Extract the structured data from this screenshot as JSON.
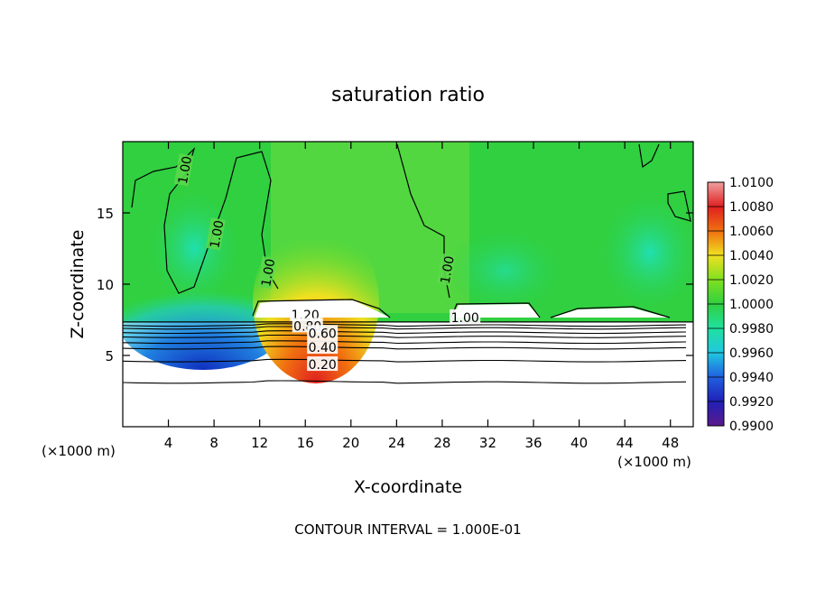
{
  "chart_data": {
    "type": "heatmap",
    "title": "saturation ratio",
    "xlabel": "X-coordinate",
    "ylabel": "Z-coordinate",
    "x_unit": "(×1000 m)",
    "x_unit_right": "(×1000 m)",
    "xlim": [
      0,
      50
    ],
    "ylim": [
      0,
      20
    ],
    "x_ticks": [
      4,
      8,
      12,
      16,
      20,
      24,
      28,
      32,
      36,
      40,
      44,
      48
    ],
    "y_ticks": [
      5,
      10,
      15
    ],
    "colorbar": {
      "labels": [
        "0.9900",
        "0.9920",
        "0.9940",
        "0.9960",
        "0.9980",
        "1.0000",
        "1.0020",
        "1.0040",
        "1.0060",
        "1.0080",
        "1.0100"
      ],
      "values": [
        0.99,
        0.992,
        0.994,
        0.996,
        0.998,
        1.0,
        1.002,
        1.004,
        1.006,
        1.008,
        1.01
      ],
      "colors": [
        "#5a1a8c",
        "#2020b8",
        "#2060e0",
        "#20c8e0",
        "#20e0a0",
        "#30d040",
        "#80e020",
        "#f0e020",
        "#f07010",
        "#e02020",
        "#f0a0a0"
      ]
    },
    "contour_labels": [
      {
        "text": "1.00",
        "x": 5.5,
        "z": 18.0
      },
      {
        "text": "1.00",
        "x": 8.3,
        "z": 13.5
      },
      {
        "text": "1.00",
        "x": 12.8,
        "z": 10.8
      },
      {
        "text": "1.00",
        "x": 28.5,
        "z": 11.0
      },
      {
        "text": "1.00",
        "x": 30.0,
        "z": 7.6
      },
      {
        "text": "1.20",
        "x": 16.0,
        "z": 7.8
      },
      {
        "text": "0.80",
        "x": 16.2,
        "z": 7.0
      },
      {
        "text": "0.60",
        "x": 17.5,
        "z": 6.5
      },
      {
        "text": "0.40",
        "x": 17.5,
        "z": 5.5
      },
      {
        "text": "0.20",
        "x": 17.5,
        "z": 4.3
      }
    ],
    "contour_levels_z": [
      3.1,
      4.6,
      5.5,
      5.9,
      6.3,
      6.6,
      6.9,
      7.1
    ],
    "footer": "CONTOUR INTERVAL = 1.000E-01"
  }
}
